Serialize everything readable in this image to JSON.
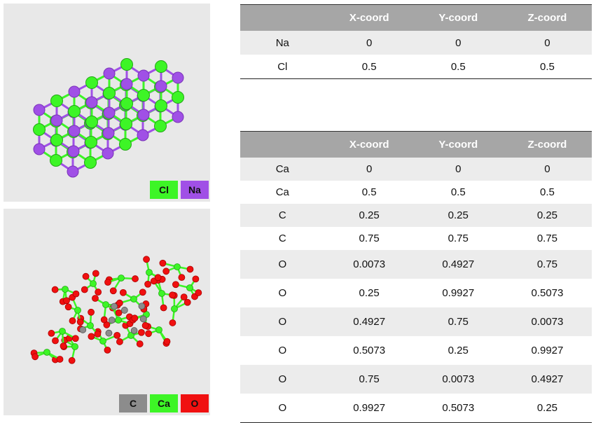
{
  "nacl": {
    "legend": [
      {
        "label": "Cl",
        "color": "#3df526"
      },
      {
        "label": "Na",
        "color": "#a050e6"
      }
    ],
    "headers": [
      "",
      "X-coord",
      "Y-coord",
      "Z-coord"
    ],
    "rows": [
      [
        "Na",
        "0",
        "0",
        "0"
      ],
      [
        "Cl",
        "0.5",
        "0.5",
        "0.5"
      ]
    ]
  },
  "caco3": {
    "legend": [
      {
        "label": "C",
        "color": "#8c8c8c"
      },
      {
        "label": "Ca",
        "color": "#3df526"
      },
      {
        "label": "O",
        "color": "#f01010"
      }
    ],
    "headers": [
      "",
      "X-coord",
      "Y-coord",
      "Z-coord"
    ],
    "rows": [
      [
        "Ca",
        "0",
        "0",
        "0"
      ],
      [
        "Ca",
        "0.5",
        "0.5",
        "0.5"
      ],
      [
        "C",
        "0.25",
        "0.25",
        "0.25"
      ],
      [
        "C",
        "0.75",
        "0.75",
        "0.75"
      ],
      [
        "O",
        "0.0073",
        "0.4927",
        "0.75"
      ],
      [
        "O",
        "0.25",
        "0.9927",
        "0.5073"
      ],
      [
        "O",
        "0.4927",
        "0.75",
        "0.0073"
      ],
      [
        "O",
        "0.5073",
        "0.25",
        "0.9927"
      ],
      [
        "O",
        "0.75",
        "0.0073",
        "0.4927"
      ],
      [
        "O",
        "0.9927",
        "0.5073",
        "0.25"
      ]
    ]
  }
}
